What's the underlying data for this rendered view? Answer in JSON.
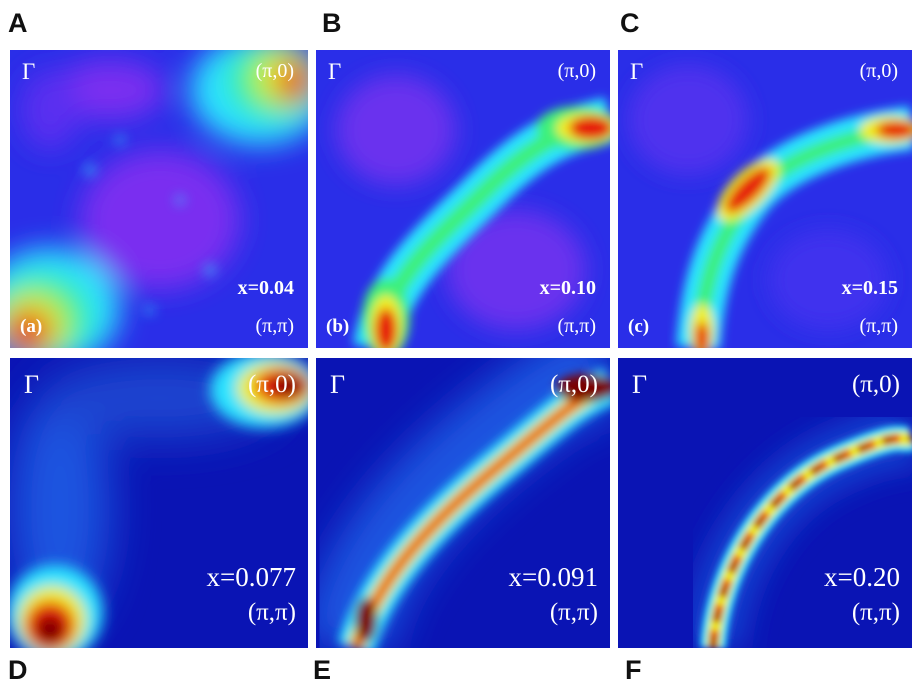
{
  "panel_letters": [
    "A",
    "B",
    "C",
    "D",
    "E",
    "F"
  ],
  "gamma_label": "Γ",
  "k_pi_zero": "(π,0)",
  "k_pi_pi": "(π,π)",
  "panels": [
    {
      "x_label": "x=0.04",
      "sub_label": "(a)"
    },
    {
      "x_label": "x=0.10",
      "sub_label": "(b)"
    },
    {
      "x_label": "x=0.15",
      "sub_label": "(c)"
    },
    {
      "x_label": "x=0.077"
    },
    {
      "x_label": "x=0.091"
    },
    {
      "x_label": "x=0.20"
    }
  ],
  "colors": {
    "low": "#1a1fd6",
    "violet": "#7a2df0",
    "cyan": "#29e3ff",
    "green": "#3df07a",
    "yellow": "#f0f020",
    "red": "#e61a10",
    "dark_red": "#7a0000"
  }
}
